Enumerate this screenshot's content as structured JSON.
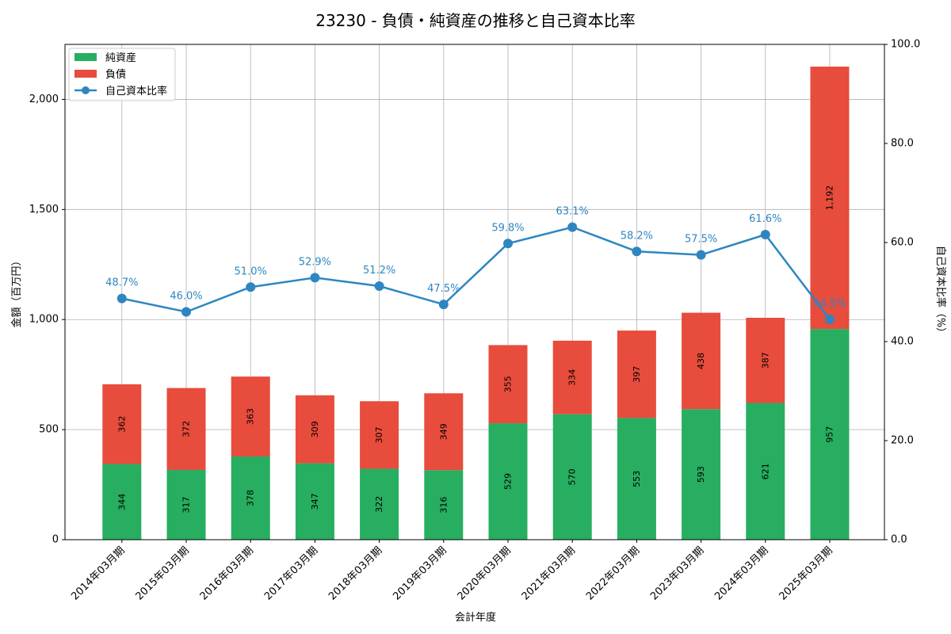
{
  "chart_data": {
    "type": "bar",
    "title": "23230 - 負債・純資産の推移と自己資本比率",
    "xlabel": "会計年度",
    "ylabel": "金額（百万円）",
    "y2label": "自己資本比率（%）",
    "ylim": [
      0,
      2250
    ],
    "y2lim": [
      0,
      100
    ],
    "yticks": [
      0,
      500,
      1000,
      1500,
      2000
    ],
    "ytick_labels": [
      "0",
      "500",
      "1,000",
      "1,500",
      "2,000"
    ],
    "y2ticks": [
      0,
      20,
      40,
      60,
      80,
      100
    ],
    "y2tick_labels": [
      "0.0",
      "20.0",
      "40.0",
      "60.0",
      "80.0",
      "100.0"
    ],
    "grid": true,
    "legend_position": "top-left",
    "categories": [
      "2014年03月期",
      "2015年03月期",
      "2016年03月期",
      "2017年03月期",
      "2018年03月期",
      "2019年03月期",
      "2020年03月期",
      "2021年03月期",
      "2022年03月期",
      "2023年03月期",
      "2024年03月期",
      "2025年03月期"
    ],
    "series": [
      {
        "name": "純資産",
        "kind": "bar",
        "color": "#27ae60",
        "values": [
          344,
          317,
          378,
          347,
          322,
          316,
          529,
          570,
          553,
          593,
          621,
          957
        ],
        "labels": [
          "344",
          "317",
          "378",
          "347",
          "322",
          "316",
          "529",
          "570",
          "553",
          "593",
          "621",
          "957"
        ]
      },
      {
        "name": "負債",
        "kind": "bar",
        "color": "#e74c3c",
        "values": [
          362,
          372,
          363,
          309,
          307,
          349,
          355,
          334,
          397,
          438,
          387,
          1192
        ],
        "labels": [
          "362",
          "372",
          "363",
          "309",
          "307",
          "349",
          "355",
          "334",
          "397",
          "438",
          "387",
          "1,192"
        ]
      },
      {
        "name": "自己資本比率",
        "kind": "line",
        "axis": "right",
        "color": "#2e86c1",
        "values": [
          48.7,
          46.0,
          51.0,
          52.9,
          51.2,
          47.5,
          59.8,
          63.1,
          58.2,
          57.5,
          61.6,
          44.5
        ],
        "labels": [
          "48.7%",
          "46.0%",
          "51.0%",
          "52.9%",
          "51.2%",
          "47.5%",
          "59.8%",
          "63.1%",
          "58.2%",
          "57.5%",
          "61.6%",
          "44.5%"
        ]
      }
    ]
  }
}
